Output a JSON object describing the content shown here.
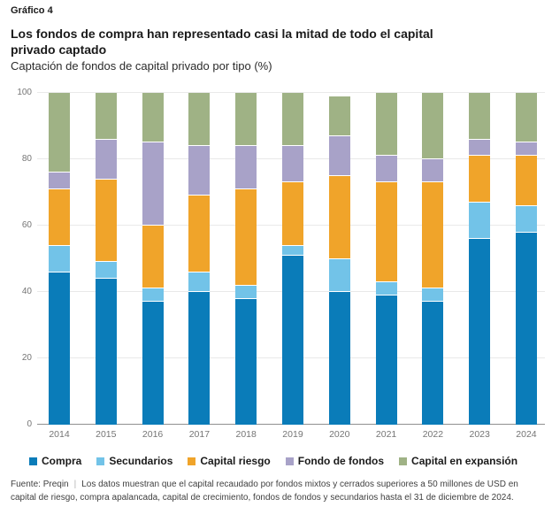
{
  "header": {
    "kicker": "Gráfico 4",
    "title_line1": "Los fondos de compra han representado casi la mitad de todo el capital",
    "title_line2": "privado captado",
    "subtitle": "Captación de fondos de capital privado por tipo (%)"
  },
  "chart_data": {
    "type": "bar",
    "stacked": true,
    "title": "Los fondos de compra han representado casi la mitad de todo el capital privado captado",
    "subtitle": "Captación de fondos de capital privado por tipo (%)",
    "xlabel": "",
    "ylabel": "%",
    "ylim": [
      0,
      100
    ],
    "yticks": [
      0,
      20,
      40,
      60,
      80,
      100
    ],
    "grid": true,
    "legend_position": "bottom",
    "categories": [
      "2014",
      "2015",
      "2016",
      "2017",
      "2018",
      "2019",
      "2020",
      "2021",
      "2022",
      "2023",
      "2024"
    ],
    "series": [
      {
        "name": "Compra",
        "color": "#0a7cb9",
        "values": [
          46,
          44,
          37,
          40,
          38,
          51,
          40,
          39,
          37,
          56,
          58
        ]
      },
      {
        "name": "Secundarios",
        "color": "#72c3e8",
        "values": [
          8,
          5,
          4,
          6,
          4,
          3,
          10,
          4,
          4,
          11,
          8
        ]
      },
      {
        "name": "Capital riesgo",
        "color": "#f0a42a",
        "values": [
          17,
          25,
          19,
          23,
          29,
          19,
          25,
          30,
          32,
          14,
          15
        ]
      },
      {
        "name": "Fondo de fondos",
        "color": "#a8a2c8",
        "values": [
          5,
          12,
          25,
          15,
          13,
          11,
          12,
          8,
          7,
          5,
          4
        ]
      },
      {
        "name": "Capital en expansión",
        "color": "#9fb285",
        "values": [
          24,
          14,
          15,
          16,
          16,
          16,
          12,
          19,
          20,
          14,
          15
        ]
      }
    ]
  },
  "footer": {
    "source": "Fuente: Preqin",
    "separator": "|",
    "note": "Los datos muestran que el capital recaudado por fondos mixtos y cerrados superiores a 50 millones de USD en capital de riesgo, compra apalancada, capital de crecimiento, fondos de fondos y secundarios hasta el 31 de diciembre de 2024."
  }
}
